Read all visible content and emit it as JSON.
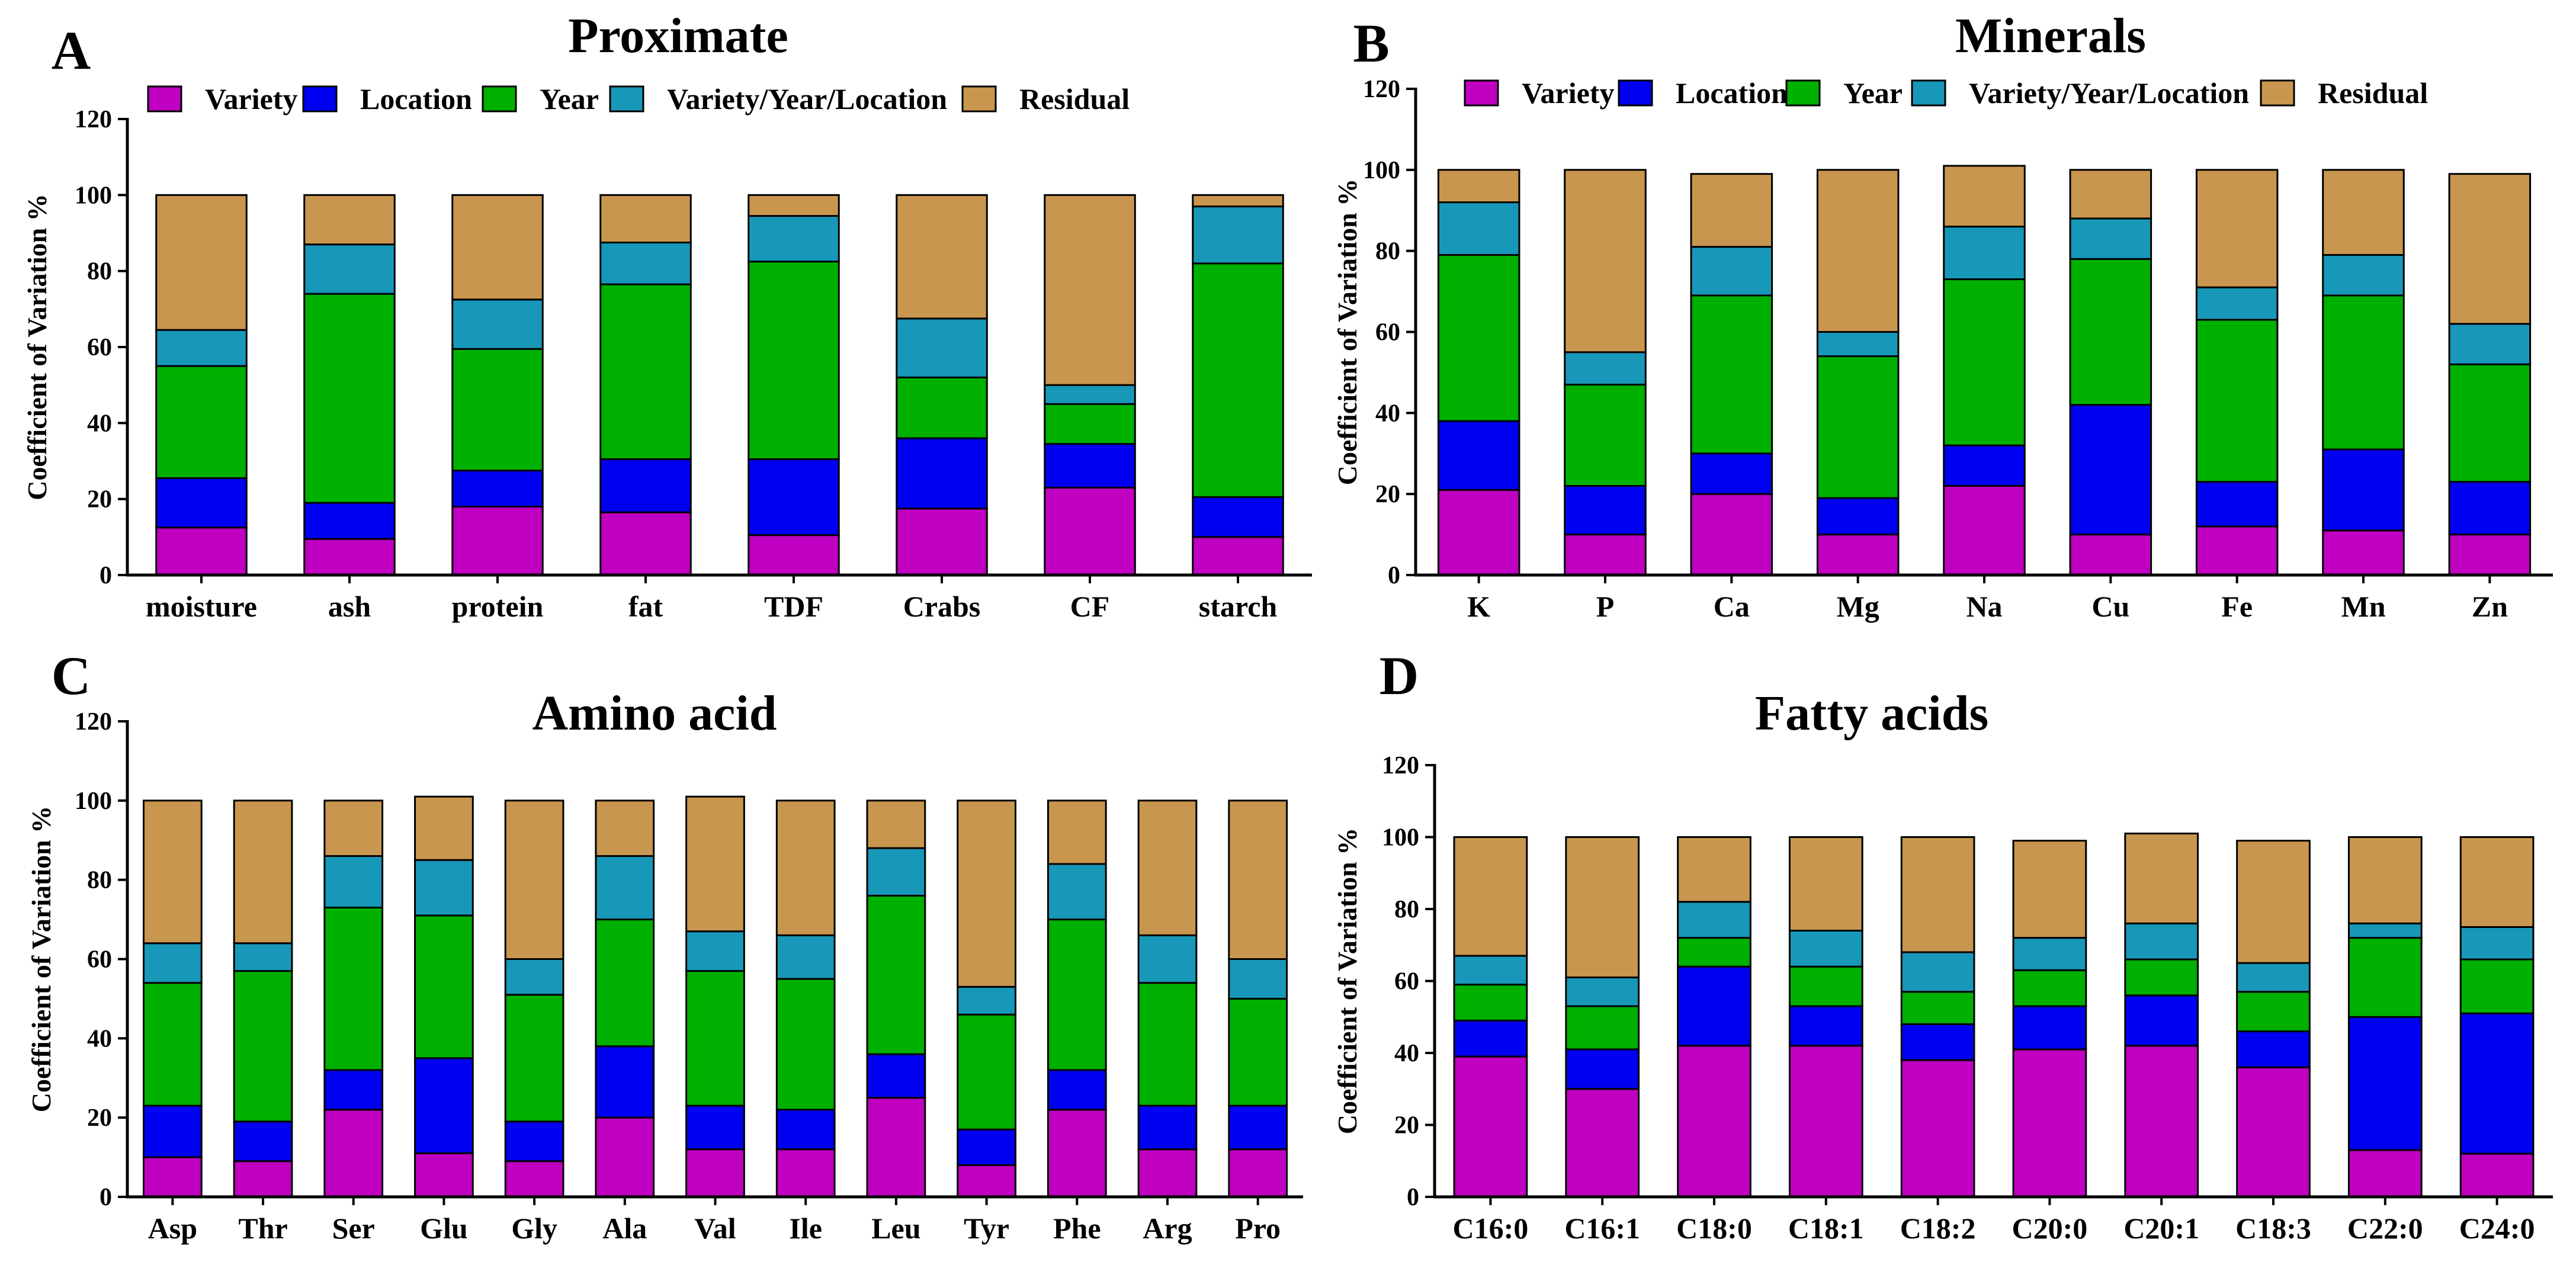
{
  "figure": {
    "legend": [
      "Variety",
      "Location",
      "Year",
      "Variety/Year/Location",
      "Residual"
    ],
    "colors": {
      "Variety": "#C000C0",
      "Location": "#0000F0",
      "Year": "#00B000",
      "Variety/Year/Location": "#1898B8",
      "Residual": "#C8964E",
      "stroke": "#000000"
    }
  },
  "chart_data": [
    {
      "letter": "A",
      "type": "bar",
      "stacked": true,
      "title": "Proximate",
      "ylabel": "Coefficient of Variation %",
      "xlabel": "",
      "ylim": [
        0,
        120
      ],
      "yticks": [
        0,
        20,
        40,
        60,
        80,
        100,
        120
      ],
      "categories": [
        "moisture",
        "ash",
        "protein",
        "fat",
        "TDF",
        "Crabs",
        "CF",
        "starch"
      ],
      "series": [
        {
          "name": "Variety",
          "values": [
            12.5,
            9.5,
            18,
            16.5,
            10.5,
            17.5,
            23,
            10
          ]
        },
        {
          "name": "Location",
          "values": [
            13,
            9.5,
            9.5,
            14,
            20,
            18.5,
            11.5,
            10.5
          ]
        },
        {
          "name": "Year",
          "values": [
            29.5,
            55,
            32,
            46,
            52,
            16,
            10.5,
            61.5
          ]
        },
        {
          "name": "Variety/Year/Location",
          "values": [
            9.5,
            13,
            13,
            11,
            12,
            15.5,
            5,
            15
          ]
        },
        {
          "name": "Residual",
          "values": [
            35.5,
            13,
            27.5,
            12.5,
            5.5,
            32.5,
            50,
            3
          ]
        }
      ]
    },
    {
      "letter": "B",
      "type": "bar",
      "stacked": true,
      "title": "Minerals",
      "ylabel": "Coefficient of Variation %",
      "xlabel": "",
      "ylim": [
        0,
        120
      ],
      "yticks": [
        0,
        20,
        40,
        60,
        80,
        100,
        120
      ],
      "categories": [
        "K",
        "P",
        "Ca",
        "Mg",
        "Na",
        "Cu",
        "Fe",
        "Mn",
        "Zn"
      ],
      "series": [
        {
          "name": "Variety",
          "values": [
            21,
            10,
            20,
            10,
            22,
            10,
            12,
            11,
            10
          ]
        },
        {
          "name": "Location",
          "values": [
            17,
            12,
            10,
            9,
            10,
            32,
            11,
            20,
            13
          ]
        },
        {
          "name": "Year",
          "values": [
            41,
            25,
            39,
            35,
            41,
            36,
            40,
            38,
            29
          ]
        },
        {
          "name": "Variety/Year/Location",
          "values": [
            13,
            8,
            12,
            6,
            13,
            10,
            8,
            10,
            10
          ]
        },
        {
          "name": "Residual",
          "values": [
            8,
            45,
            18,
            40,
            15,
            12,
            29,
            21,
            37
          ]
        }
      ]
    },
    {
      "letter": "C",
      "type": "bar",
      "stacked": true,
      "title": "Amino acid",
      "ylabel": "Coefficient of Variation %",
      "xlabel": "",
      "ylim": [
        0,
        120
      ],
      "yticks": [
        0,
        20,
        40,
        60,
        80,
        100,
        120
      ],
      "categories": [
        "Asp",
        "Thr",
        "Ser",
        "Glu",
        "Gly",
        "Ala",
        "Val",
        "Ile",
        "Leu",
        "Tyr",
        "Phe",
        "Arg",
        "Pro"
      ],
      "series": [
        {
          "name": "Variety",
          "values": [
            10,
            9,
            22,
            11,
            9,
            20,
            12,
            12,
            25,
            8,
            22,
            12,
            12
          ]
        },
        {
          "name": "Location",
          "values": [
            13,
            10,
            10,
            24,
            10,
            18,
            11,
            10,
            11,
            9,
            10,
            11,
            11
          ]
        },
        {
          "name": "Year",
          "values": [
            31,
            38,
            41,
            36,
            32,
            32,
            34,
            33,
            40,
            29,
            38,
            31,
            27
          ]
        },
        {
          "name": "Variety/Year/Location",
          "values": [
            10,
            7,
            13,
            14,
            9,
            16,
            10,
            11,
            12,
            7,
            14,
            12,
            10
          ]
        },
        {
          "name": "Residual",
          "values": [
            36,
            36,
            14,
            16,
            40,
            14,
            34,
            34,
            12,
            47,
            16,
            34,
            40
          ]
        }
      ]
    },
    {
      "letter": "D",
      "type": "bar",
      "stacked": true,
      "title": "Fatty acids",
      "ylabel": "Coefficient of Variation %",
      "xlabel": "",
      "ylim": [
        0,
        120
      ],
      "yticks": [
        0,
        20,
        40,
        60,
        80,
        100,
        120
      ],
      "categories": [
        "C16:0",
        "C16:1",
        "C18:0",
        "C18:1",
        "C18:2",
        "C20:0",
        "C20:1",
        "C18:3",
        "C22:0",
        "C24:0"
      ],
      "series": [
        {
          "name": "Variety",
          "values": [
            39,
            30,
            42,
            42,
            38,
            41,
            42,
            36,
            13,
            12
          ]
        },
        {
          "name": "Location",
          "values": [
            10,
            11,
            22,
            11,
            10,
            12,
            14,
            10,
            37,
            39
          ]
        },
        {
          "name": "Year",
          "values": [
            10,
            12,
            8,
            11,
            9,
            10,
            10,
            11,
            22,
            15
          ]
        },
        {
          "name": "Variety/Year/Location",
          "values": [
            8,
            8,
            10,
            10,
            11,
            9,
            10,
            8,
            4,
            9
          ]
        },
        {
          "name": "Residual",
          "values": [
            33,
            39,
            18,
            26,
            32,
            27,
            25,
            34,
            24,
            25
          ]
        }
      ]
    }
  ]
}
